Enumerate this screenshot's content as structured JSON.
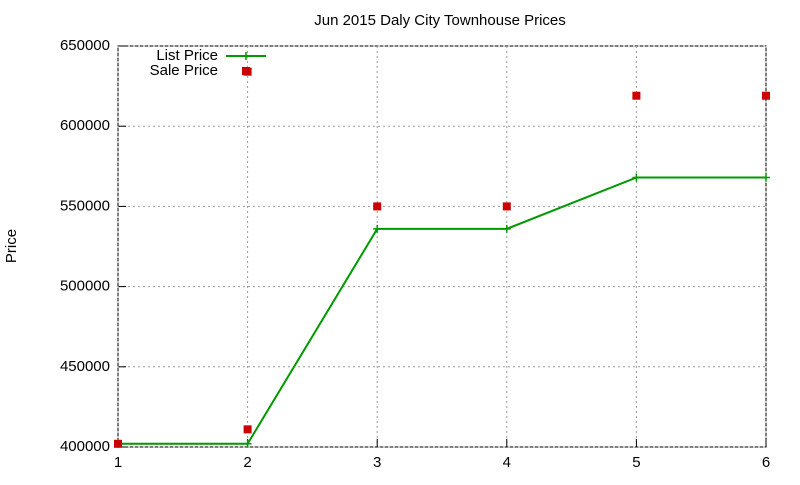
{
  "chart_data": {
    "type": "line",
    "title": "Jun 2015 Daly City Townhouse Prices",
    "y_label": "Price",
    "series": [
      {
        "name": "List Price",
        "color": "#009900",
        "line": true,
        "marker": "plus",
        "x": [
          1,
          2,
          3,
          4,
          5,
          6
        ],
        "values": [
          402000,
          402000,
          536000,
          536000,
          568000,
          568000
        ]
      },
      {
        "name": "Sale Price",
        "color": "#cc0000",
        "line": false,
        "marker": "square",
        "x": [
          1,
          2,
          2,
          3,
          4,
          5,
          6
        ],
        "values": [
          402000,
          411000,
          634000,
          550000,
          550000,
          619000,
          619000
        ]
      }
    ],
    "xlim": [
      1,
      6
    ],
    "xticks": [
      1,
      2,
      3,
      4,
      5,
      6
    ],
    "ylim": [
      400000,
      650000
    ],
    "yticks": [
      400000,
      450000,
      500000,
      550000,
      600000,
      650000
    ],
    "grid": true,
    "legend": "top-left"
  }
}
